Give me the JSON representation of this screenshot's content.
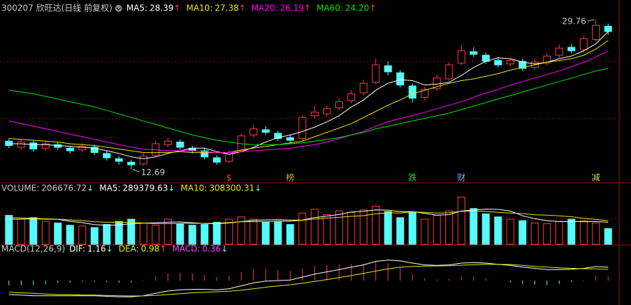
{
  "chart_data": [
    {
      "type": "candlestick",
      "title": "300207 欣旺达(日线 前复权)",
      "up_color": "#ff3c3c",
      "down_color": "#54fcfc",
      "ylim": [
        11.7,
        30.8
      ],
      "open": [
        15.9,
        15.2,
        15.7,
        15.1,
        15.5,
        15.1,
        14.9,
        15.2,
        14.5,
        13.9,
        13.5,
        13.3,
        14.3,
        15.5,
        15.8,
        15.1,
        14.8,
        14.0,
        13.6,
        14.8,
        16.6,
        17.2,
        16.8,
        16.3,
        16.2,
        18.8,
        19.0,
        19.7,
        20.5,
        21.4,
        22.6,
        24.5,
        23.7,
        22.2,
        20.9,
        21.9,
        23.0,
        24.8,
        26.1,
        25.7,
        25.1,
        24.7,
        25.0,
        24.3,
        24.8,
        25.7,
        26.6,
        26.3,
        27.5,
        29.0
      ],
      "high": [
        16.2,
        16.1,
        16.0,
        15.9,
        15.8,
        15.4,
        15.7,
        15.5,
        14.8,
        14.2,
        13.8,
        14.5,
        15.9,
        16.3,
        16.1,
        15.4,
        15.1,
        14.3,
        14.9,
        16.8,
        17.7,
        17.6,
        17.1,
        16.6,
        18.9,
        19.9,
        20.0,
        20.8,
        21.7,
        22.9,
        25.3,
        25.0,
        24.0,
        22.5,
        22.1,
        23.5,
        24.9,
        26.9,
        26.6,
        26.0,
        25.5,
        25.4,
        25.3,
        25.2,
        25.9,
        26.9,
        27.0,
        27.9,
        29.76,
        29.3
      ],
      "low": [
        15.1,
        14.9,
        14.7,
        14.8,
        14.9,
        14.5,
        14.6,
        14.3,
        13.7,
        13.2,
        12.69,
        13.1,
        14.1,
        15.2,
        14.9,
        14.5,
        13.8,
        13.2,
        13.4,
        14.6,
        16.3,
        16.6,
        15.9,
        15.7,
        16.0,
        18.5,
        18.7,
        19.4,
        20.2,
        21.1,
        22.4,
        23.4,
        22.0,
        20.3,
        20.6,
        21.6,
        22.8,
        24.6,
        25.5,
        24.7,
        24.3,
        24.4,
        23.9,
        24.0,
        24.5,
        25.4,
        25.9,
        26.0,
        27.3,
        28.0
      ],
      "close": [
        15.4,
        15.8,
        15.0,
        15.6,
        15.2,
        14.8,
        15.3,
        14.6,
        14.0,
        13.6,
        13.2,
        14.2,
        15.6,
        15.9,
        15.2,
        14.8,
        14.1,
        13.5,
        14.6,
        16.5,
        17.3,
        16.9,
        16.2,
        16.0,
        18.6,
        19.2,
        19.6,
        20.4,
        21.3,
        22.5,
        24.6,
        23.8,
        22.3,
        20.8,
        21.8,
        23.1,
        24.6,
        26.2,
        25.8,
        25.0,
        24.6,
        25.1,
        24.2,
        24.9,
        25.6,
        26.5,
        26.2,
        27.6,
        29.1,
        28.4
      ],
      "series": [
        {
          "name": "MA5:",
          "color": "#ffffff",
          "arrow": "↑",
          "values": [
            15.6,
            15.6,
            15.5,
            15.5,
            15.4,
            15.3,
            15.2,
            15.1,
            14.8,
            14.5,
            14.1,
            13.9,
            14.1,
            14.5,
            14.8,
            15.1,
            15.1,
            14.7,
            14.4,
            14.7,
            15.2,
            15.8,
            16.3,
            16.6,
            17.0,
            17.5,
            18.1,
            18.8,
            19.8,
            20.6,
            21.7,
            22.5,
            22.9,
            22.8,
            22.3,
            22.4,
            22.6,
            23.4,
            24.3,
            25.0,
            25.4,
            25.3,
            24.9,
            24.7,
            24.9,
            25.3,
            25.6,
            26.2,
            27.0,
            28.39
          ]
        },
        {
          "name": "MA10:",
          "color": "#e8e800",
          "arrow": "↑",
          "values": [
            16.2,
            16.1,
            16.0,
            15.9,
            15.8,
            15.6,
            15.5,
            15.4,
            15.2,
            15.0,
            14.8,
            14.6,
            14.6,
            14.6,
            14.7,
            14.6,
            14.6,
            14.6,
            14.6,
            14.9,
            15.1,
            15.3,
            15.5,
            15.7,
            15.9,
            16.4,
            16.9,
            17.4,
            17.9,
            18.6,
            19.3,
            20.0,
            20.6,
            21.3,
            21.7,
            22.1,
            22.5,
            22.8,
            23.0,
            23.3,
            23.6,
            24.0,
            24.3,
            24.6,
            24.9,
            25.1,
            25.3,
            25.7,
            26.4,
            27.38
          ]
        },
        {
          "name": "MA20:",
          "color": "#ff00ff",
          "arrow": "↑",
          "values": [
            18.2,
            17.9,
            17.6,
            17.3,
            17.0,
            16.7,
            16.4,
            16.1,
            15.8,
            15.5,
            15.2,
            15.0,
            14.9,
            14.8,
            14.8,
            14.8,
            14.7,
            14.6,
            14.6,
            14.7,
            14.8,
            14.9,
            15.0,
            15.1,
            15.3,
            15.5,
            15.8,
            16.2,
            16.6,
            17.0,
            17.6,
            18.1,
            18.5,
            18.8,
            19.2,
            19.6,
            20.0,
            20.4,
            20.9,
            21.4,
            21.8,
            22.3,
            22.7,
            23.1,
            23.5,
            23.9,
            24.4,
            24.9,
            25.5,
            26.19
          ]
        },
        {
          "name": "MA60:",
          "color": "#00e600",
          "arrow": "↑",
          "value_label": "24.20",
          "values": [
            21.7,
            21.5,
            21.3,
            21.0,
            20.7,
            20.4,
            20.1,
            19.8,
            19.4,
            19.0,
            18.6,
            18.2,
            17.8,
            17.4,
            17.0,
            16.6,
            16.3,
            16.0,
            15.8,
            15.6,
            15.5,
            15.5,
            15.5,
            15.6,
            15.7,
            15.9,
            16.1,
            16.3,
            16.6,
            16.9,
            17.3,
            17.6,
            17.9,
            18.2,
            18.5,
            18.8,
            19.1,
            19.5,
            19.9,
            20.3,
            20.7,
            21.1,
            21.5,
            21.9,
            22.3,
            22.7,
            23.1,
            23.5,
            23.9,
            24.2
          ]
        }
      ],
      "events": [
        {
          "index": 18,
          "label": "$",
          "color": "#ff3c3c"
        },
        {
          "index": 23,
          "label": "榜",
          "color": "#e0a040"
        },
        {
          "index": 33,
          "label": "跌",
          "color": "#30d030"
        },
        {
          "index": 37,
          "label": "财",
          "color": "#80a0ff"
        },
        {
          "index": 48,
          "label": "减",
          "color": "#c0e040"
        }
      ]
    },
    {
      "type": "bar",
      "name": "VOLUME:",
      "arrow": "↓",
      "ylim": [
        0,
        660000
      ],
      "values": [
        380000,
        330000,
        350000,
        300000,
        280000,
        250000,
        240000,
        220000,
        260000,
        300000,
        330000,
        280000,
        250000,
        330000,
        270000,
        250000,
        260000,
        290000,
        330000,
        360000,
        330000,
        290000,
        300000,
        260000,
        410000,
        460000,
        390000,
        440000,
        420000,
        450000,
        500000,
        430000,
        350000,
        420000,
        330000,
        380000,
        440000,
        620000,
        470000,
        400000,
        360000,
        330000,
        310000,
        280000,
        270000,
        300000,
        330000,
        310000,
        280000,
        206676.72
      ],
      "series": [
        {
          "name": "MA5:",
          "color": "#ffffff",
          "arrow": "↓",
          "values": [
            330000,
            330000,
            335000,
            330000,
            328000,
            302000,
            284000,
            258000,
            250000,
            254000,
            270000,
            278000,
            284000,
            290000,
            293000,
            283000,
            272000,
            270000,
            280000,
            298000,
            314000,
            320000,
            322000,
            316000,
            318000,
            350000,
            370000,
            392000,
            424000,
            434000,
            452000,
            448000,
            430000,
            430000,
            406000,
            382000,
            390000,
            438000,
            448000,
            462000,
            458000,
            436000,
            374000,
            336000,
            310000,
            298000,
            298000,
            298000,
            298000,
            289379.63
          ]
        },
        {
          "name": "MA10:",
          "color": "#e8e800",
          "arrow": "↓",
          "values": [
            350000,
            345000,
            340000,
            335000,
            330000,
            320000,
            310000,
            295000,
            290000,
            290000,
            285000,
            280000,
            270000,
            270000,
            272000,
            276000,
            275000,
            277000,
            285000,
            296000,
            298000,
            296000,
            302000,
            302000,
            316000,
            332000,
            344000,
            354000,
            368000,
            376000,
            400000,
            414000,
            410000,
            426000,
            418000,
            410000,
            414000,
            434000,
            436000,
            432000,
            419000,
            410000,
            402000,
            388000,
            382000,
            374000,
            362000,
            340000,
            327000,
            308300.31
          ]
        }
      ]
    },
    {
      "type": "macd",
      "title": "MACD(12,26,9)",
      "ylim": [
        -1.8,
        2.4
      ],
      "series": [
        {
          "name": "DIF:",
          "color": "#ffffff",
          "arrow": "↓",
          "values": [
            -1.2,
            -1.25,
            -1.3,
            -1.3,
            -1.3,
            -1.3,
            -1.3,
            -1.3,
            -1.35,
            -1.4,
            -1.4,
            -1.3,
            -1.1,
            -0.9,
            -0.8,
            -0.75,
            -0.75,
            -0.8,
            -0.7,
            -0.45,
            -0.2,
            -0.05,
            0.0,
            0.05,
            0.3,
            0.55,
            0.75,
            0.95,
            1.15,
            1.35,
            1.65,
            1.75,
            1.7,
            1.5,
            1.35,
            1.3,
            1.35,
            1.5,
            1.55,
            1.5,
            1.4,
            1.3,
            1.15,
            1.05,
            0.95,
            0.95,
            0.98,
            1.05,
            1.2,
            1.16
          ]
        },
        {
          "name": "DEA:",
          "color": "#e8e800",
          "arrow": "↑",
          "values": [
            -1.0,
            -1.05,
            -1.1,
            -1.15,
            -1.2,
            -1.2,
            -1.25,
            -1.25,
            -1.28,
            -1.3,
            -1.32,
            -1.32,
            -1.28,
            -1.2,
            -1.12,
            -1.05,
            -1.0,
            -0.96,
            -0.91,
            -0.82,
            -0.7,
            -0.57,
            -0.46,
            -0.36,
            -0.23,
            -0.07,
            0.09,
            0.26,
            0.44,
            0.62,
            0.83,
            1.01,
            1.15,
            1.22,
            1.25,
            1.26,
            1.28,
            1.32,
            1.37,
            1.4,
            1.4,
            1.38,
            1.3,
            1.22,
            1.15,
            1.1,
            1.05,
            1.02,
            1.0,
            0.98
          ]
        }
      ],
      "hist": {
        "name": "MACD:",
        "color": "#ff40ff",
        "arrow": "↓",
        "up_color": "#ff3c3c",
        "down_color": "#54fcfc",
        "values": [
          -0.4,
          -0.4,
          -0.4,
          -0.3,
          -0.2,
          -0.2,
          -0.1,
          -0.1,
          -0.14,
          -0.2,
          -0.16,
          0.04,
          0.36,
          0.6,
          0.64,
          0.6,
          0.5,
          0.32,
          0.42,
          0.74,
          1.0,
          1.04,
          0.92,
          0.82,
          1.06,
          1.24,
          1.32,
          1.38,
          1.42,
          1.46,
          1.64,
          1.48,
          1.1,
          0.56,
          0.2,
          0.08,
          0.14,
          0.36,
          0.36,
          0.2,
          0,
          -0.16,
          -0.3,
          -0.34,
          -0.4,
          -0.3,
          -0.14,
          0.06,
          0.4,
          0.36
        ]
      }
    }
  ]
}
